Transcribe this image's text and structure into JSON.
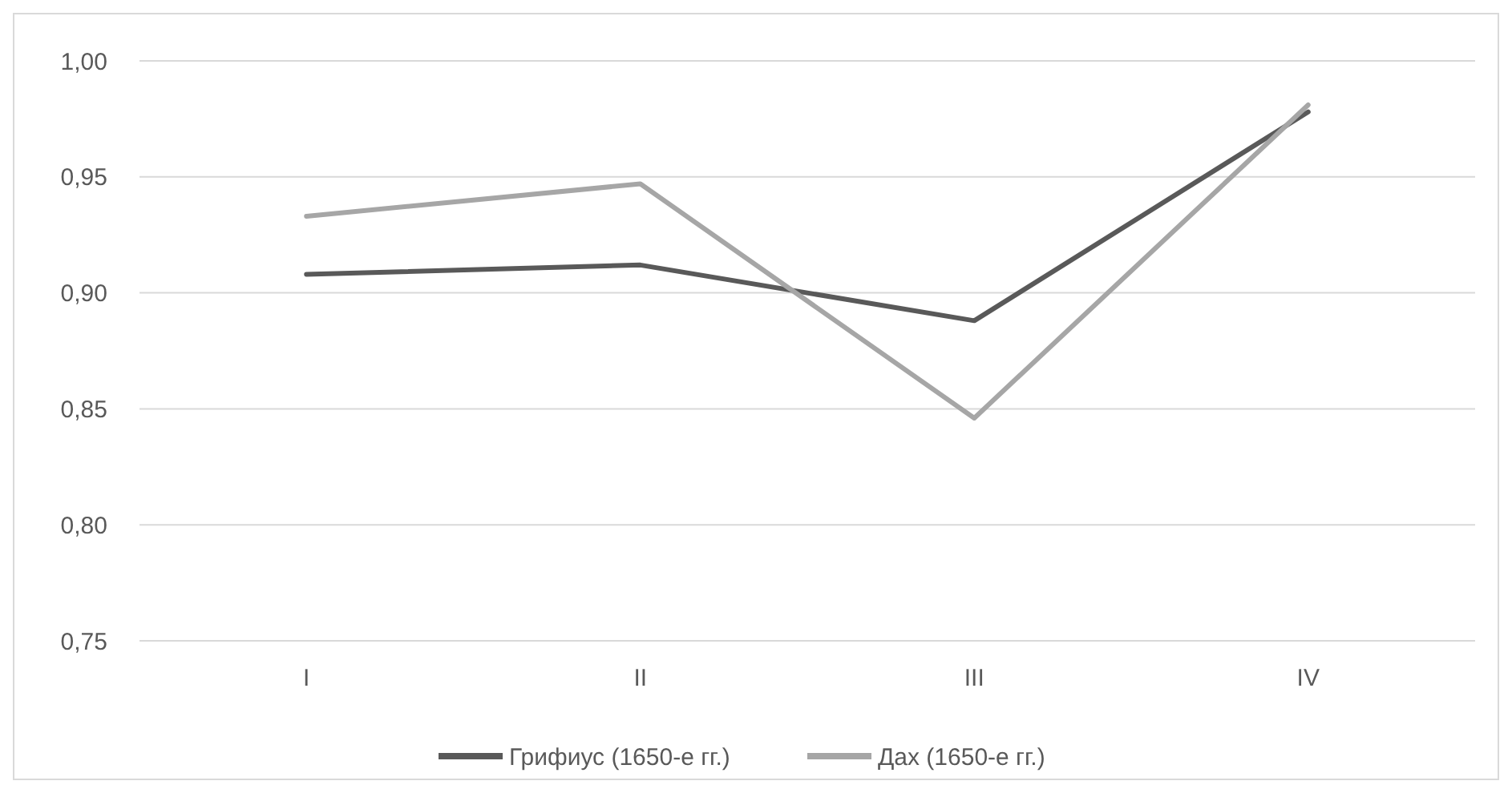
{
  "chart_data": {
    "type": "line",
    "categories": [
      "I",
      "II",
      "III",
      "IV"
    ],
    "series": [
      {
        "name": "Грифиус (1650-е гг.)",
        "color": "#595959",
        "values": [
          0.908,
          0.912,
          0.888,
          0.978
        ]
      },
      {
        "name": "Дах (1650-е гг.)",
        "color": "#a6a6a6",
        "values": [
          0.933,
          0.947,
          0.846,
          0.981
        ]
      }
    ],
    "ylim": [
      0.75,
      1.0
    ],
    "yticks": [
      {
        "value": 0.75,
        "label": "0,75"
      },
      {
        "value": 0.8,
        "label": "0,80"
      },
      {
        "value": 0.85,
        "label": "0,85"
      },
      {
        "value": 0.9,
        "label": "0,90"
      },
      {
        "value": 0.95,
        "label": "0,95"
      },
      {
        "value": 1.0,
        "label": "1,00"
      }
    ],
    "grid": "y",
    "legend": "bottom",
    "marker": "none",
    "line_style": "solid"
  }
}
